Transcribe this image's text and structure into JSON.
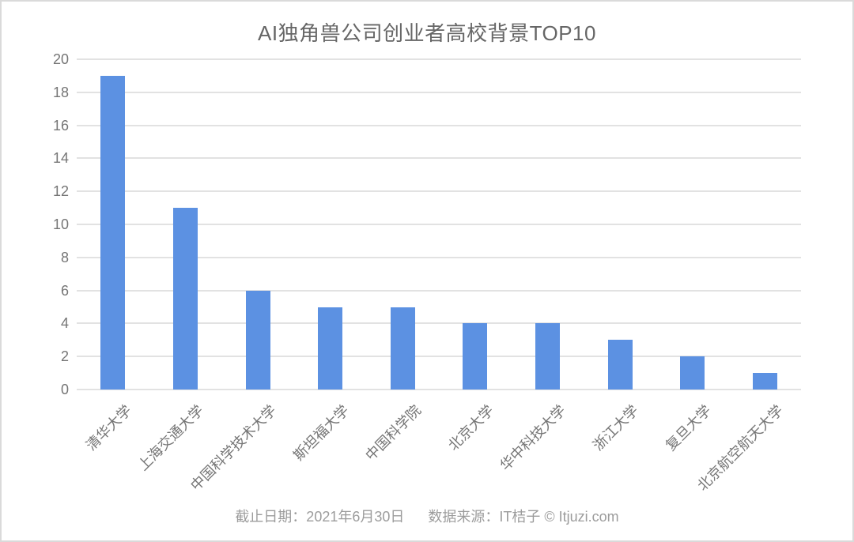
{
  "title": "AI独角兽公司创业者高校背景TOP10",
  "chart_data": {
    "type": "bar",
    "title": "AI独角兽公司创业者高校背景TOP10",
    "categories": [
      "清华大学",
      "上海交通大学",
      "中国科学技术大学",
      "斯坦福大学",
      "中国科学院",
      "北京大学",
      "华中科技大学",
      "浙江大学",
      "复旦大学",
      "北京航空航天大学"
    ],
    "values": [
      19,
      11,
      6,
      5,
      5,
      4,
      4,
      3,
      2,
      1
    ],
    "xlabel": "",
    "ylabel": "",
    "ylim": [
      0,
      20
    ],
    "yticks": [
      0,
      2,
      4,
      6,
      8,
      10,
      12,
      14,
      16,
      18,
      20
    ],
    "grid": true,
    "legend": false,
    "label_rotation_deg": 45,
    "colors": {
      "bar": "#5C91E2",
      "gridline": "#e2e2e2",
      "title_text": "#666666",
      "axis_text": "#757575",
      "footer_text": "#9c9c9c"
    }
  },
  "footer": {
    "date_text": "截止日期：2021年6月30日",
    "source_text": "数据来源：IT桔子 © Itjuzi.com"
  }
}
